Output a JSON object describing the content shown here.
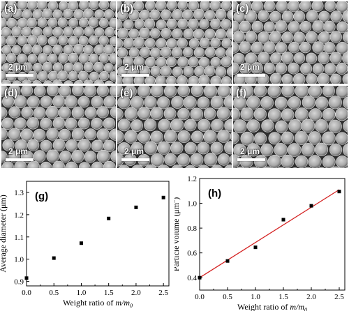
{
  "figure": {
    "sem_panels": [
      {
        "letter": "(a)",
        "scale_label": "2 μm"
      },
      {
        "letter": "(b)",
        "scale_label": "2 μm"
      },
      {
        "letter": "(c)",
        "scale_label": "2 μm"
      },
      {
        "letter": "(d)",
        "scale_label": "2 μm"
      },
      {
        "letter": "(e)",
        "scale_label": "2 μm"
      },
      {
        "letter": "(f)",
        "scale_label": "2 μm"
      }
    ],
    "colors": {
      "markers": "#000000",
      "fit_line": "#d42020",
      "sem_background": "#3a3a3a"
    }
  },
  "chart_data": [
    {
      "type": "scatter",
      "panel_label": "(g)",
      "xlabel_prefix": "Weight ratio of ",
      "xlabel_var": "m/m",
      "xlabel_sub": "0",
      "ylabel": "Average diameter (μm)",
      "x": [
        0.0,
        0.5,
        1.0,
        1.5,
        2.0,
        2.5
      ],
      "y": [
        0.915,
        1.005,
        1.072,
        1.183,
        1.233,
        1.277
      ],
      "xlim": [
        0.0,
        2.6
      ],
      "ylim": [
        0.88,
        1.35
      ],
      "xticks": [
        "0.0",
        "0.5",
        "1.0",
        "1.5",
        "2.0",
        "2.5"
      ],
      "yticks": [
        "0.9",
        "1.0",
        "1.1",
        "1.2",
        "1.3"
      ],
      "grid": false
    },
    {
      "type": "scatter",
      "panel_label": "(h)",
      "xlabel_prefix": "Weight ratio of ",
      "xlabel_var": "m/m",
      "xlabel_sub": "0",
      "ylabel": "Particle volume (μm",
      "ylabel_sup": "3",
      "ylabel_end": ")",
      "x": [
        0.0,
        0.5,
        1.0,
        1.5,
        2.0,
        2.5
      ],
      "y": [
        0.4,
        0.535,
        0.645,
        0.868,
        0.98,
        1.095
      ],
      "fit_line": {
        "x": [
          0.0,
          2.5
        ],
        "y": [
          0.4,
          1.11
        ]
      },
      "xlim": [
        0.0,
        2.6
      ],
      "ylim": [
        0.3,
        1.2
      ],
      "xticks": [
        "0.0",
        "0.5",
        "1.0",
        "1.5",
        "2.0",
        "2.5"
      ],
      "yticks": [
        "0.4",
        "0.6",
        "0.8",
        "1.0",
        "1.2"
      ],
      "grid": false
    }
  ]
}
